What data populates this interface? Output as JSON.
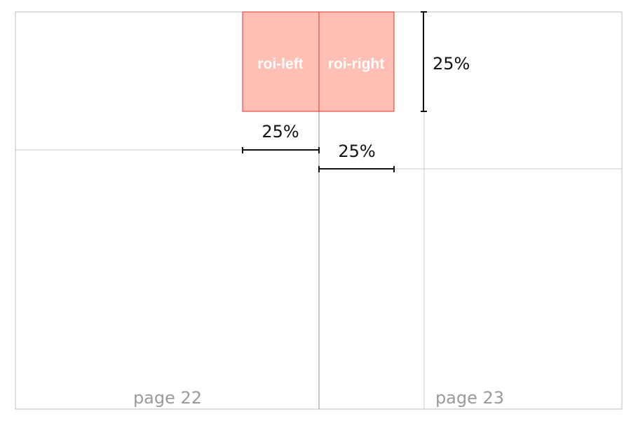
{
  "pages": {
    "left_label": "page 22",
    "right_label": "page 23"
  },
  "roi": {
    "left_label": "roi-left",
    "right_label": "roi-right"
  },
  "measurements": {
    "vertical": "25%",
    "left_width": "25%",
    "right_width": "25%"
  },
  "colors": {
    "roi_fill": "#ffbfb5",
    "roi_stroke": "#d93a2b",
    "frame_stroke": "#bdbdbd",
    "guide_stroke": "#c8c8c8",
    "measure_stroke": "#111111"
  }
}
